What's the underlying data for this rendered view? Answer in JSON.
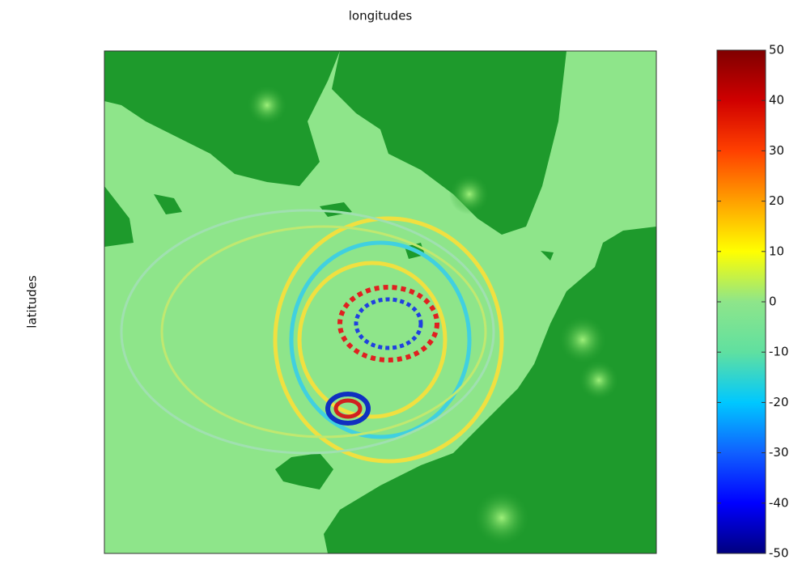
{
  "chart_data": {
    "type": "heatmap",
    "xlabel": "longitudes",
    "ylabel": "latitudes",
    "colorbar": {
      "clim": [
        -50,
        50
      ],
      "ticks": [
        -50,
        -40,
        -30,
        -20,
        -10,
        0,
        10,
        20,
        30,
        40,
        50
      ],
      "colors": [
        "#00007f",
        "#0000ff",
        "#1060ff",
        "#00c8ff",
        "#60e0a0",
        "#8ee58a",
        "#ffff00",
        "#ffa000",
        "#ff4000",
        "#d00000",
        "#7f0000"
      ]
    }
  }
}
